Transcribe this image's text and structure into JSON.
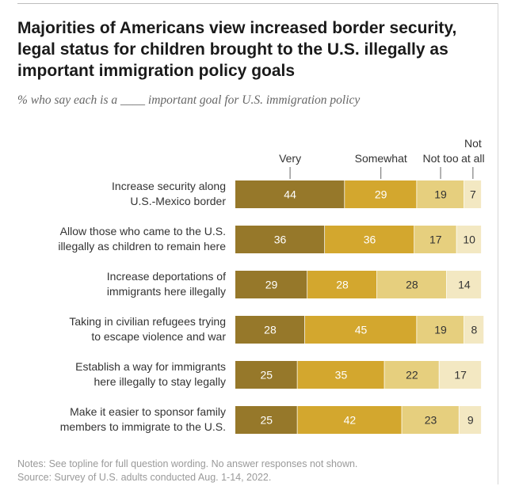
{
  "colors": {
    "very": "#96782a",
    "somewhat": "#d3a72e",
    "not_too": "#e6cf7e",
    "not_at_all": "#f3e8c2"
  },
  "title": "Majorities of Americans view increased border security, legal status for children brought to the U.S. illegally as important immigration policy goals",
  "subtitle": "% who say each is a ____ important goal for U.S. immigration policy",
  "notes": "Notes: See topline for full question wording. No answer responses not shown.",
  "source": "Source: Survey of U.S. adults conducted Aug. 1-14, 2022.",
  "chart_data": {
    "type": "bar",
    "orientation": "horizontal",
    "stacked": true,
    "categories": [
      [
        "Increase security along",
        "U.S.-Mexico border"
      ],
      [
        "Allow those who came to the U.S.",
        "illegally as children to remain here"
      ],
      [
        "Increase deportations of",
        "immigrants here illegally"
      ],
      [
        "Taking in civilian refugees trying",
        "to escape violence and war"
      ],
      [
        "Establish a way for immigrants",
        "here illegally to stay legally"
      ],
      [
        "Make it easier to sponsor family",
        "members to immigrate to the U.S."
      ]
    ],
    "series": [
      {
        "name": "Very",
        "legend": [
          "Very"
        ],
        "values": [
          44,
          36,
          29,
          28,
          25,
          25
        ]
      },
      {
        "name": "Somewhat",
        "legend": [
          "Somewhat"
        ],
        "values": [
          29,
          36,
          28,
          45,
          35,
          42
        ]
      },
      {
        "name": "Not too",
        "legend": [
          "Not too"
        ],
        "values": [
          19,
          17,
          28,
          19,
          22,
          23
        ]
      },
      {
        "name": "Not at all",
        "legend": [
          "Not",
          "at all"
        ],
        "values": [
          7,
          10,
          14,
          8,
          17,
          9
        ]
      }
    ],
    "xlim": [
      0,
      100
    ],
    "legend_position": "top"
  }
}
